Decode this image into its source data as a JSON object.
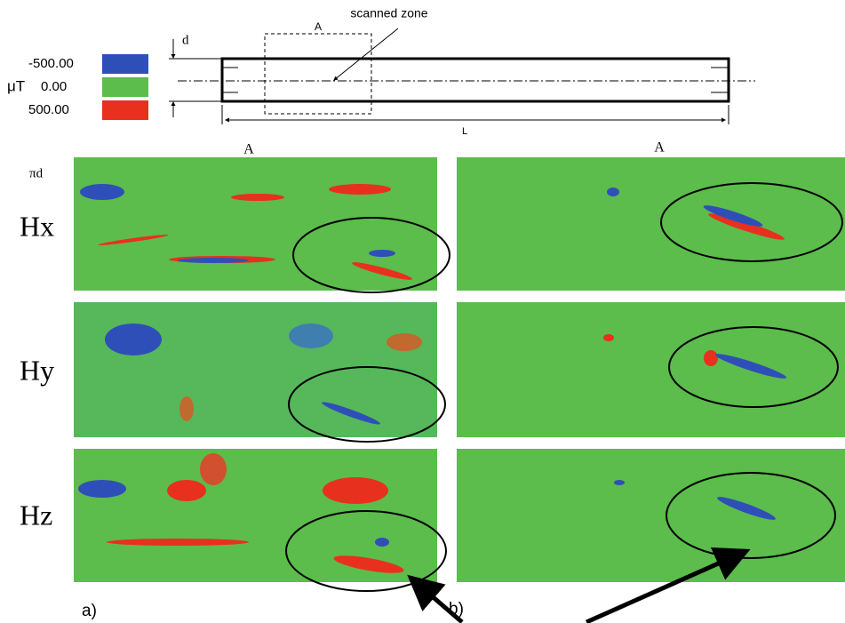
{
  "legend": {
    "unit": "μT",
    "labels": [
      "-500.00",
      "0.00",
      "500.00"
    ]
  },
  "schematic": {
    "diameter_label": "d",
    "zone_label": "A",
    "annotation": "scanned zone",
    "length_label": "L"
  },
  "panels": {
    "column_labels": [
      "A",
      "A"
    ],
    "circumference_label": "πd",
    "row_labels": [
      "Hx",
      "Hy",
      "Hz"
    ],
    "part_labels": [
      "a)",
      "b)"
    ]
  }
}
